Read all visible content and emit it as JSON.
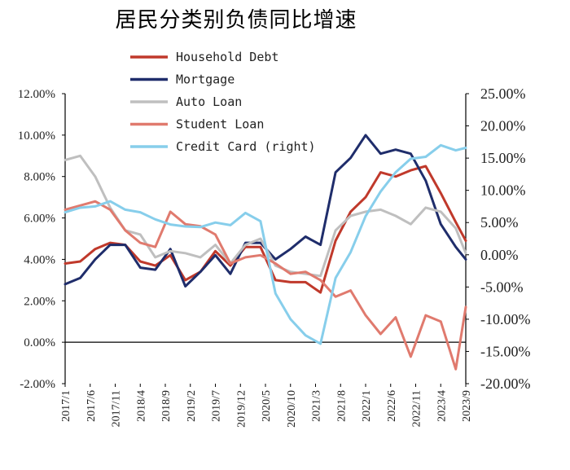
{
  "chart_data": {
    "type": "line",
    "title": "居民分类别负债同比增速",
    "categories": [
      "2017/1",
      "2017/6",
      "2017/11",
      "2018/4",
      "2018/9",
      "2019/2",
      "2019/7",
      "2019/12",
      "2020/5",
      "2020/10",
      "2021/3",
      "2021/8",
      "2022/1",
      "2022/6",
      "2022/11",
      "2023/4",
      "2023/9"
    ],
    "x": [
      "2017/1",
      "2017/4",
      "2017/7",
      "2017/10",
      "2018/1",
      "2018/4",
      "2018/7",
      "2018/10",
      "2019/1",
      "2019/4",
      "2019/7",
      "2019/10",
      "2020/1",
      "2020/4",
      "2020/7",
      "2020/10",
      "2021/1",
      "2021/4",
      "2021/7",
      "2021/10",
      "2022/1",
      "2022/4",
      "2022/7",
      "2022/10",
      "2023/1",
      "2023/4",
      "2023/7",
      "2023/9"
    ],
    "y_left": {
      "ticks": [
        "-2.00%",
        "0.00%",
        "2.00%",
        "4.00%",
        "6.00%",
        "8.00%",
        "10.00%",
        "12.00%"
      ],
      "ylim": [
        -2,
        12
      ]
    },
    "y_right": {
      "ticks": [
        "-20.00%",
        "-15.00%",
        "-10.00%",
        "-5.00%",
        "0.00%",
        "5.00%",
        "10.00%",
        "15.00%",
        "20.00%",
        "25.00%"
      ],
      "ylim": [
        -20,
        25
      ]
    },
    "series": [
      {
        "name": "Household Debt",
        "axis": "left",
        "color": "#c0392b",
        "values": [
          3.8,
          3.9,
          4.5,
          4.8,
          4.7,
          3.9,
          3.7,
          4.2,
          3.0,
          3.4,
          4.4,
          3.7,
          4.6,
          4.6,
          3.0,
          2.9,
          2.9,
          2.4,
          4.9,
          6.3,
          7.0,
          8.2,
          8.0,
          8.3,
          8.5,
          7.2,
          5.8,
          4.9
        ]
      },
      {
        "name": "Mortgage",
        "axis": "left",
        "color": "#1f2d6b",
        "values": [
          2.8,
          3.1,
          4.0,
          4.7,
          4.7,
          3.6,
          3.5,
          4.5,
          2.7,
          3.4,
          4.2,
          3.3,
          4.8,
          4.8,
          4.0,
          4.5,
          5.1,
          4.7,
          8.2,
          8.9,
          10.0,
          9.1,
          9.3,
          9.1,
          7.8,
          5.7,
          4.6,
          4.0
        ]
      },
      {
        "name": "Auto Loan",
        "axis": "left",
        "color": "#bfbfbf",
        "values": [
          8.8,
          9.0,
          8.0,
          6.5,
          5.4,
          5.2,
          4.1,
          4.4,
          4.3,
          4.1,
          4.7,
          3.8,
          4.7,
          5.0,
          3.7,
          3.4,
          3.3,
          3.2,
          5.4,
          6.1,
          6.3,
          6.4,
          6.1,
          5.7,
          6.5,
          6.3,
          5.5,
          4.3
        ]
      },
      {
        "name": "Student Loan",
        "axis": "left",
        "color": "#e07a6e",
        "values": [
          6.4,
          6.6,
          6.8,
          6.4,
          5.4,
          4.8,
          4.6,
          6.3,
          5.7,
          5.6,
          5.2,
          3.8,
          4.1,
          4.2,
          3.8,
          3.3,
          3.4,
          3.0,
          2.2,
          2.5,
          1.3,
          0.4,
          1.2,
          -0.7,
          1.3,
          1.0,
          -1.3,
          1.7
        ]
      },
      {
        "name": "Credit Card  (right)",
        "axis": "right",
        "color": "#87ceeb",
        "values": [
          6.6,
          7.3,
          7.5,
          8.3,
          7.0,
          6.6,
          5.5,
          4.7,
          4.4,
          4.3,
          5.0,
          4.6,
          6.5,
          5.2,
          -6.0,
          -10.0,
          -12.5,
          -13.8,
          -3.6,
          0.4,
          6.0,
          9.8,
          12.8,
          14.9,
          15.2,
          17.0,
          16.2,
          16.6
        ]
      }
    ],
    "legend_position": "top-center",
    "grid": false
  }
}
